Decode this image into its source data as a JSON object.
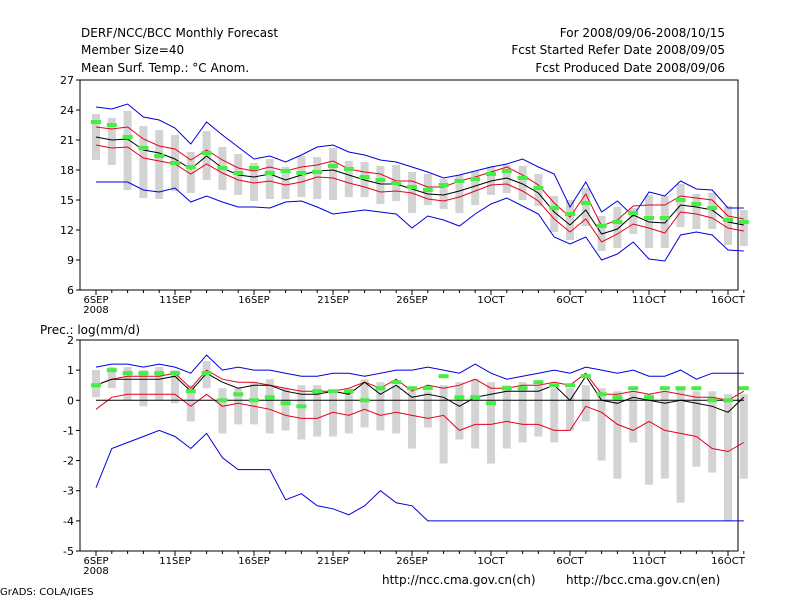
{
  "header": {
    "left": [
      "DERF/NCC/BCC Monthly Forecast",
      "Member Size=40",
      "Mean Surf. Temp.: °C Anom."
    ],
    "right": [
      "For 2008/09/06-2008/10/15",
      "Fcst Started Refer Date 2008/09/05",
      "Fcst Produced Date 2008/09/06"
    ]
  },
  "footer": {
    "grads": "GrADS: COLA/IGES",
    "url1": "http://ncc.cma.gov.cn(ch)",
    "url2": "http://bcc.cma.gov.cn(en)"
  },
  "colors": {
    "mean": "#000000",
    "spread": "#e8001c",
    "envelope": "#0000dd",
    "box": "#d3d3d3",
    "obs": "#44ee44"
  },
  "chart_data": [
    {
      "type": "line",
      "title": "Mean Surf. Temp.: °C Anom.",
      "x_tick_labels": [
        "6SEP",
        "11SEP",
        "16SEP",
        "21SEP",
        "26SEP",
        "1OCT",
        "6OCT",
        "11OCT",
        "16OCT"
      ],
      "x_sublabel": "2008",
      "x_days": 41,
      "ylim": [
        6,
        27
      ],
      "yticks": [
        6,
        9,
        12,
        15,
        18,
        21,
        24,
        27
      ],
      "series": [
        {
          "name": "max",
          "values": [
            24.3,
            24.1,
            24.6,
            23.3,
            23.0,
            22.2,
            20.6,
            22.8,
            21.5,
            20.3,
            19.1,
            19.4,
            18.8,
            19.5,
            20.3,
            20.5,
            19.8,
            19.5,
            19.0,
            18.8,
            18.3,
            17.8,
            17.2,
            17.5,
            17.9,
            18.3,
            18.6,
            19.1,
            18.3,
            17.6,
            14.3,
            16.8,
            13.8,
            14.9,
            13.4,
            15.8,
            15.4,
            16.9,
            16.1,
            16.0,
            14.2,
            14.2
          ]
        },
        {
          "name": "upper",
          "values": [
            22.3,
            22.1,
            22.3,
            21.1,
            20.4,
            20.1,
            19.0,
            20.0,
            19.0,
            18.2,
            17.9,
            18.3,
            17.9,
            18.3,
            18.5,
            18.9,
            18.1,
            17.8,
            17.6,
            16.9,
            16.9,
            16.3,
            16.3,
            16.9,
            17.3,
            17.8,
            18.3,
            17.5,
            16.5,
            14.7,
            13.3,
            15.6,
            12.4,
            13.0,
            14.4,
            14.5,
            14.5,
            15.4,
            15.2,
            15.0,
            13.4,
            13.1
          ]
        },
        {
          "name": "mean",
          "values": [
            21.3,
            21.0,
            21.1,
            20.0,
            19.7,
            19.1,
            18.1,
            19.4,
            18.2,
            17.5,
            17.3,
            17.6,
            17.0,
            17.5,
            17.9,
            18.0,
            17.5,
            17.0,
            16.6,
            16.6,
            16.1,
            15.6,
            15.5,
            15.9,
            16.4,
            16.9,
            17.2,
            16.6,
            15.7,
            13.8,
            12.5,
            14.0,
            11.6,
            12.1,
            13.5,
            12.8,
            12.7,
            14.5,
            14.3,
            14.0,
            12.8,
            12.5
          ]
        },
        {
          "name": "lower",
          "values": [
            20.5,
            20.2,
            20.3,
            19.2,
            18.9,
            18.6,
            17.6,
            18.6,
            17.7,
            17.0,
            16.7,
            16.9,
            16.5,
            16.8,
            17.3,
            17.2,
            16.7,
            16.3,
            15.8,
            15.9,
            15.7,
            15.1,
            14.9,
            15.3,
            15.9,
            16.5,
            16.6,
            15.9,
            14.9,
            13.1,
            11.8,
            13.1,
            10.8,
            11.6,
            12.6,
            12.2,
            11.7,
            13.8,
            13.6,
            13.2,
            12.2,
            11.9
          ]
        },
        {
          "name": "min",
          "values": [
            16.8,
            16.8,
            16.8,
            16.0,
            15.8,
            16.2,
            14.8,
            15.4,
            14.8,
            14.3,
            14.3,
            14.2,
            14.8,
            14.9,
            14.3,
            13.6,
            13.8,
            14.0,
            13.8,
            13.6,
            12.2,
            13.4,
            13.0,
            12.4,
            13.6,
            14.6,
            15.2,
            14.4,
            13.6,
            11.3,
            10.6,
            11.3,
            9.0,
            9.6,
            10.8,
            9.1,
            8.9,
            11.5,
            11.8,
            11.5,
            10.0,
            9.9
          ]
        }
      ],
      "boxes_low": [
        19.0,
        18.5,
        16.0,
        15.2,
        15.1,
        15.9,
        15.7,
        17.0,
        16.0,
        15.5,
        14.9,
        15.1,
        15.1,
        15.3,
        15.1,
        15.0,
        15.3,
        15.3,
        14.6,
        14.9,
        13.7,
        14.5,
        14.1,
        13.7,
        14.5,
        15.5,
        15.7,
        15.0,
        14.4,
        11.8,
        11.0,
        12.4,
        9.9,
        10.2,
        11.6,
        10.2,
        10.2,
        12.3,
        12.1,
        12.1,
        10.5,
        10.4
      ],
      "boxes_high": [
        23.6,
        23.2,
        23.9,
        22.4,
        22.0,
        21.5,
        19.8,
        21.9,
        20.3,
        19.6,
        18.7,
        19.1,
        18.3,
        19.4,
        19.3,
        20.2,
        18.9,
        18.8,
        18.4,
        18.5,
        17.8,
        17.6,
        17.1,
        17.5,
        17.9,
        18.3,
        18.5,
        18.4,
        17.6,
        15.4,
        15.0,
        16.2,
        13.4,
        14.3,
        14.2,
        15.5,
        15.4,
        16.6,
        15.6,
        15.7,
        14.4,
        14.0
      ],
      "obs": [
        22.8,
        22.5,
        21.3,
        20.2,
        19.4,
        18.7,
        18.3,
        19.7,
        18.2,
        17.7,
        18.2,
        17.7,
        17.9,
        17.7,
        17.8,
        18.4,
        18.1,
        17.3,
        17.0,
        16.7,
        16.3,
        16.0,
        16.5,
        16.9,
        17.1,
        17.6,
        17.9,
        17.2,
        16.2,
        14.2,
        13.6,
        14.7,
        12.4,
        12.8,
        13.7,
        13.2,
        13.2,
        15.0,
        14.6,
        14.2,
        13.0,
        12.8
      ]
    },
    {
      "type": "line",
      "title": "Prec.: log(mm/d)",
      "x_tick_labels": [
        "6SEP",
        "11SEP",
        "16SEP",
        "21SEP",
        "26SEP",
        "1OCT",
        "6OCT",
        "11OCT",
        "16OCT"
      ],
      "x_sublabel": "2008",
      "x_days": 41,
      "ylim": [
        -5,
        2
      ],
      "yticks": [
        -5,
        -4,
        -3,
        -2,
        -1,
        0,
        1,
        2
      ],
      "series": [
        {
          "name": "max",
          "values": [
            1.1,
            1.2,
            1.2,
            1.1,
            1.2,
            1.1,
            0.9,
            1.5,
            1.0,
            1.1,
            1.0,
            1.0,
            0.9,
            0.8,
            0.8,
            0.9,
            0.9,
            0.8,
            0.9,
            1.0,
            1.0,
            1.1,
            1.0,
            0.9,
            1.2,
            0.9,
            0.7,
            0.8,
            0.9,
            1.0,
            0.9,
            1.1,
            1.0,
            0.9,
            1.0,
            0.8,
            0.8,
            1.0,
            0.7,
            0.9,
            0.9,
            0.9
          ]
        },
        {
          "name": "upper",
          "values": [
            0.5,
            0.7,
            0.8,
            0.8,
            0.8,
            0.9,
            0.4,
            1.0,
            0.7,
            0.6,
            0.6,
            0.5,
            0.4,
            0.3,
            0.3,
            0.3,
            0.4,
            0.6,
            0.4,
            0.7,
            0.3,
            0.5,
            0.4,
            0.5,
            0.7,
            0.4,
            0.4,
            0.5,
            0.5,
            0.6,
            0.5,
            0.9,
            0.2,
            0.2,
            0.3,
            0.2,
            0.3,
            0.2,
            0.1,
            0.1,
            0.0,
            0.3
          ]
        },
        {
          "name": "mean",
          "values": [
            0.5,
            0.7,
            0.7,
            0.7,
            0.7,
            0.8,
            0.3,
            0.9,
            0.6,
            0.4,
            0.5,
            0.5,
            0.3,
            0.2,
            0.2,
            0.3,
            0.2,
            0.6,
            0.2,
            0.5,
            0.1,
            0.2,
            0.1,
            -0.2,
            0.1,
            0.2,
            0.3,
            0.3,
            0.3,
            0.5,
            0.0,
            0.8,
            0.0,
            -0.1,
            0.1,
            0.0,
            -0.1,
            0.0,
            -0.1,
            -0.2,
            -0.4,
            0.1
          ]
        },
        {
          "name": "lower",
          "values": [
            -0.3,
            0.1,
            0.2,
            0.2,
            0.2,
            0.2,
            -0.2,
            0.2,
            -0.2,
            -0.1,
            -0.2,
            -0.3,
            -0.5,
            -0.6,
            -0.6,
            -0.4,
            -0.5,
            -0.3,
            -0.5,
            -0.4,
            -0.5,
            -0.6,
            -0.5,
            -1.0,
            -0.8,
            -0.8,
            -0.7,
            -0.8,
            -0.8,
            -1.0,
            -1.0,
            -0.2,
            -0.4,
            -0.8,
            -1.0,
            -0.7,
            -1.0,
            -1.1,
            -1.2,
            -1.6,
            -1.7,
            -1.4
          ]
        },
        {
          "name": "min",
          "values": [
            -2.9,
            -1.6,
            -1.4,
            -1.2,
            -1.0,
            -1.2,
            -1.6,
            -1.1,
            -1.9,
            -2.3,
            -2.3,
            -2.3,
            -3.3,
            -3.1,
            -3.5,
            -3.6,
            -3.8,
            -3.5,
            -3.0,
            -3.4,
            -3.5,
            -4.0,
            -4.0,
            -4.0,
            -4.0,
            -4.0,
            -4.0,
            -4.0,
            -4.0,
            -4.0,
            -4.0,
            -4.0,
            -4.0,
            -4.0,
            -4.0,
            -4.0,
            -4.0,
            -4.0,
            -4.0,
            -4.0,
            -4.0,
            -4.0
          ]
        },
        {
          "name": "zero",
          "values": [
            0,
            0,
            0,
            0,
            0,
            0,
            0,
            0,
            0,
            0,
            0,
            0,
            0,
            0,
            0,
            0,
            0,
            0,
            0,
            0,
            0,
            0,
            0,
            0,
            0,
            0,
            0,
            0,
            0,
            0,
            0,
            0,
            0,
            0,
            0,
            0,
            0,
            0,
            0,
            0,
            0,
            0
          ]
        }
      ],
      "boxes_low": [
        0.1,
        0.4,
        0.0,
        -0.2,
        0.0,
        -0.1,
        -0.7,
        0.4,
        -1.1,
        -0.8,
        -0.8,
        -1.1,
        -1.0,
        -1.3,
        -1.2,
        -1.2,
        -1.1,
        -0.9,
        -1.0,
        -1.1,
        -1.6,
        -0.9,
        -2.1,
        -1.3,
        -1.6,
        -2.1,
        -1.6,
        -1.4,
        -1.2,
        -1.4,
        -1.0,
        -0.7,
        -2.0,
        -2.6,
        -1.4,
        -2.8,
        -2.6,
        -3.4,
        -2.2,
        -2.4,
        -4.0,
        -2.6
      ],
      "boxes_high": [
        1.0,
        1.1,
        1.1,
        1.0,
        1.1,
        1.0,
        0.5,
        1.3,
        0.4,
        0.4,
        0.6,
        0.7,
        0.4,
        0.5,
        0.5,
        0.3,
        0.4,
        0.7,
        0.6,
        0.5,
        0.3,
        0.3,
        0.5,
        0.6,
        0.7,
        0.6,
        0.5,
        0.6,
        0.5,
        0.4,
        0.4,
        0.5,
        0.4,
        0.3,
        0.3,
        0.2,
        0.3,
        0.4,
        0.3,
        0.3,
        0.2,
        0.2
      ],
      "obs": [
        0.5,
        1.0,
        0.9,
        0.9,
        0.9,
        0.9,
        0.3,
        0.9,
        0.0,
        0.2,
        0.0,
        0.1,
        -0.1,
        -0.2,
        0.3,
        0.3,
        0.3,
        0.0,
        0.4,
        0.6,
        0.4,
        0.4,
        0.8,
        0.1,
        0.1,
        -0.1,
        0.4,
        0.4,
        0.6,
        0.5,
        0.5,
        0.8,
        0.2,
        0.1,
        0.4,
        0.1,
        0.4,
        0.4,
        0.4,
        0.0,
        0.0,
        0.4
      ]
    }
  ]
}
